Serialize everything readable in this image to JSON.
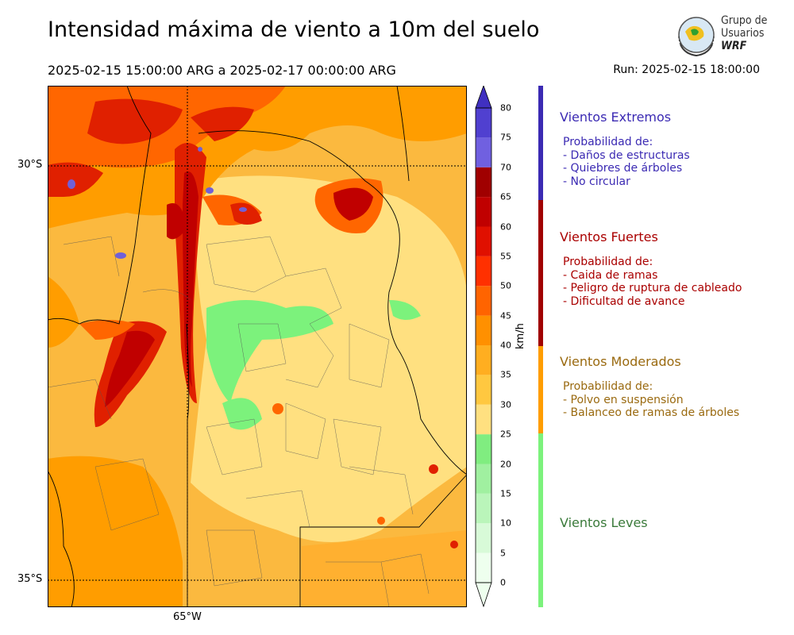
{
  "header": {
    "title": "Intensidad máxima de viento a 10m del suelo",
    "period": "2025-02-15 15:00:00 ARG  a  2025-02-17 00:00:00 ARG",
    "run": "Run: 2025-02-15 18:00:00"
  },
  "logo": {
    "line1": "Grupo de",
    "line2": "Usuarios",
    "line3": "WRF"
  },
  "map": {
    "lat_labels": [
      "30°S",
      "35°S"
    ],
    "lon_labels": [
      "65°W"
    ],
    "colors": {
      "calm": "#ffe080",
      "moderate": "#fbb93f",
      "orange": "#ff9d00",
      "red1": "#ff6600",
      "red2": "#e02000",
      "red3": "#c00000",
      "green": "#7cf27c",
      "purple": "#7060d8"
    }
  },
  "colorbar": {
    "unit": "km/h",
    "ticks": [
      "0",
      "5",
      "10",
      "15",
      "20",
      "25",
      "30",
      "35",
      "40",
      "45",
      "50",
      "55",
      "60",
      "65",
      "70",
      "75",
      "80"
    ],
    "colors": [
      "#eeffee",
      "#d8fad8",
      "#baf5ba",
      "#a0f0a0",
      "#80ed80",
      "#ffe080",
      "#ffc840",
      "#ffae20",
      "#ff9000",
      "#ff6400",
      "#ff3000",
      "#e01000",
      "#c00000",
      "#a00000",
      "#7060e0",
      "#5040d0",
      "#4030c0"
    ]
  },
  "categories": [
    {
      "title": "Vientos Extremos",
      "color": "#3b2ab3",
      "lines": [
        "Probabilidad de:",
        "- Daños de estructuras",
        "- Quiebres de árboles",
        "- No circular"
      ]
    },
    {
      "title": "Vientos Fuertes",
      "color": "#aa0000",
      "lines": [
        "Probabilidad de:",
        "- Caida de ramas",
        "- Peligro de ruptura de cableado",
        "- Dificultad de avance"
      ]
    },
    {
      "title": "Vientos Moderados",
      "color": "#9a6a10",
      "lines": [
        "Probabilidad de:",
        "- Polvo en suspensión",
        "- Balanceo de ramas de árboles"
      ]
    },
    {
      "title": "Vientos Leves",
      "color": "#3a7a3a",
      "lines": []
    }
  ]
}
